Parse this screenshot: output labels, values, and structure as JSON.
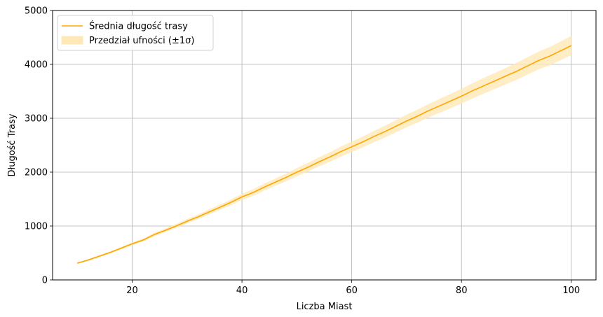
{
  "chart_data": {
    "type": "line",
    "title": "",
    "xlabel": "Liczba Miast",
    "ylabel": "Długość Trasy",
    "xlim": [
      5.5,
      104.5
    ],
    "ylim": [
      0,
      5000
    ],
    "xticks": [
      20,
      40,
      60,
      80,
      100
    ],
    "yticks": [
      0,
      1000,
      2000,
      3000,
      4000,
      5000
    ],
    "grid": true,
    "legend_position": "top-left",
    "colors": {
      "line": "#FFA500",
      "band": "#FFE8B8"
    },
    "series": [
      {
        "name": "Średnia długość trasy",
        "x": [
          10,
          12,
          14,
          16,
          18,
          20,
          22,
          24,
          26,
          28,
          30,
          32,
          34,
          36,
          38,
          40,
          42,
          44,
          46,
          48,
          50,
          52,
          54,
          56,
          58,
          60,
          62,
          64,
          66,
          68,
          70,
          72,
          74,
          76,
          78,
          80,
          82,
          84,
          86,
          88,
          90,
          92,
          94,
          96,
          98,
          100
        ],
        "y": [
          310,
          370,
          440,
          510,
          590,
          670,
          740,
          840,
          920,
          1000,
          1090,
          1170,
          1260,
          1350,
          1440,
          1540,
          1620,
          1720,
          1810,
          1900,
          2000,
          2090,
          2190,
          2280,
          2380,
          2470,
          2560,
          2660,
          2750,
          2850,
          2950,
          3040,
          3140,
          3230,
          3320,
          3410,
          3510,
          3600,
          3690,
          3780,
          3870,
          3970,
          4070,
          4150,
          4250,
          4350
        ]
      }
    ],
    "band": {
      "name": "Przedział ufności (±1σ)",
      "sigma": [
        15,
        17,
        19,
        21,
        23,
        25,
        28,
        31,
        34,
        37,
        40,
        43,
        46,
        49,
        53,
        57,
        61,
        65,
        69,
        73,
        77,
        81,
        85,
        89,
        93,
        97,
        101,
        105,
        109,
        113,
        117,
        121,
        125,
        129,
        133,
        137,
        141,
        145,
        149,
        153,
        157,
        161,
        165,
        169,
        173,
        177
      ]
    }
  }
}
